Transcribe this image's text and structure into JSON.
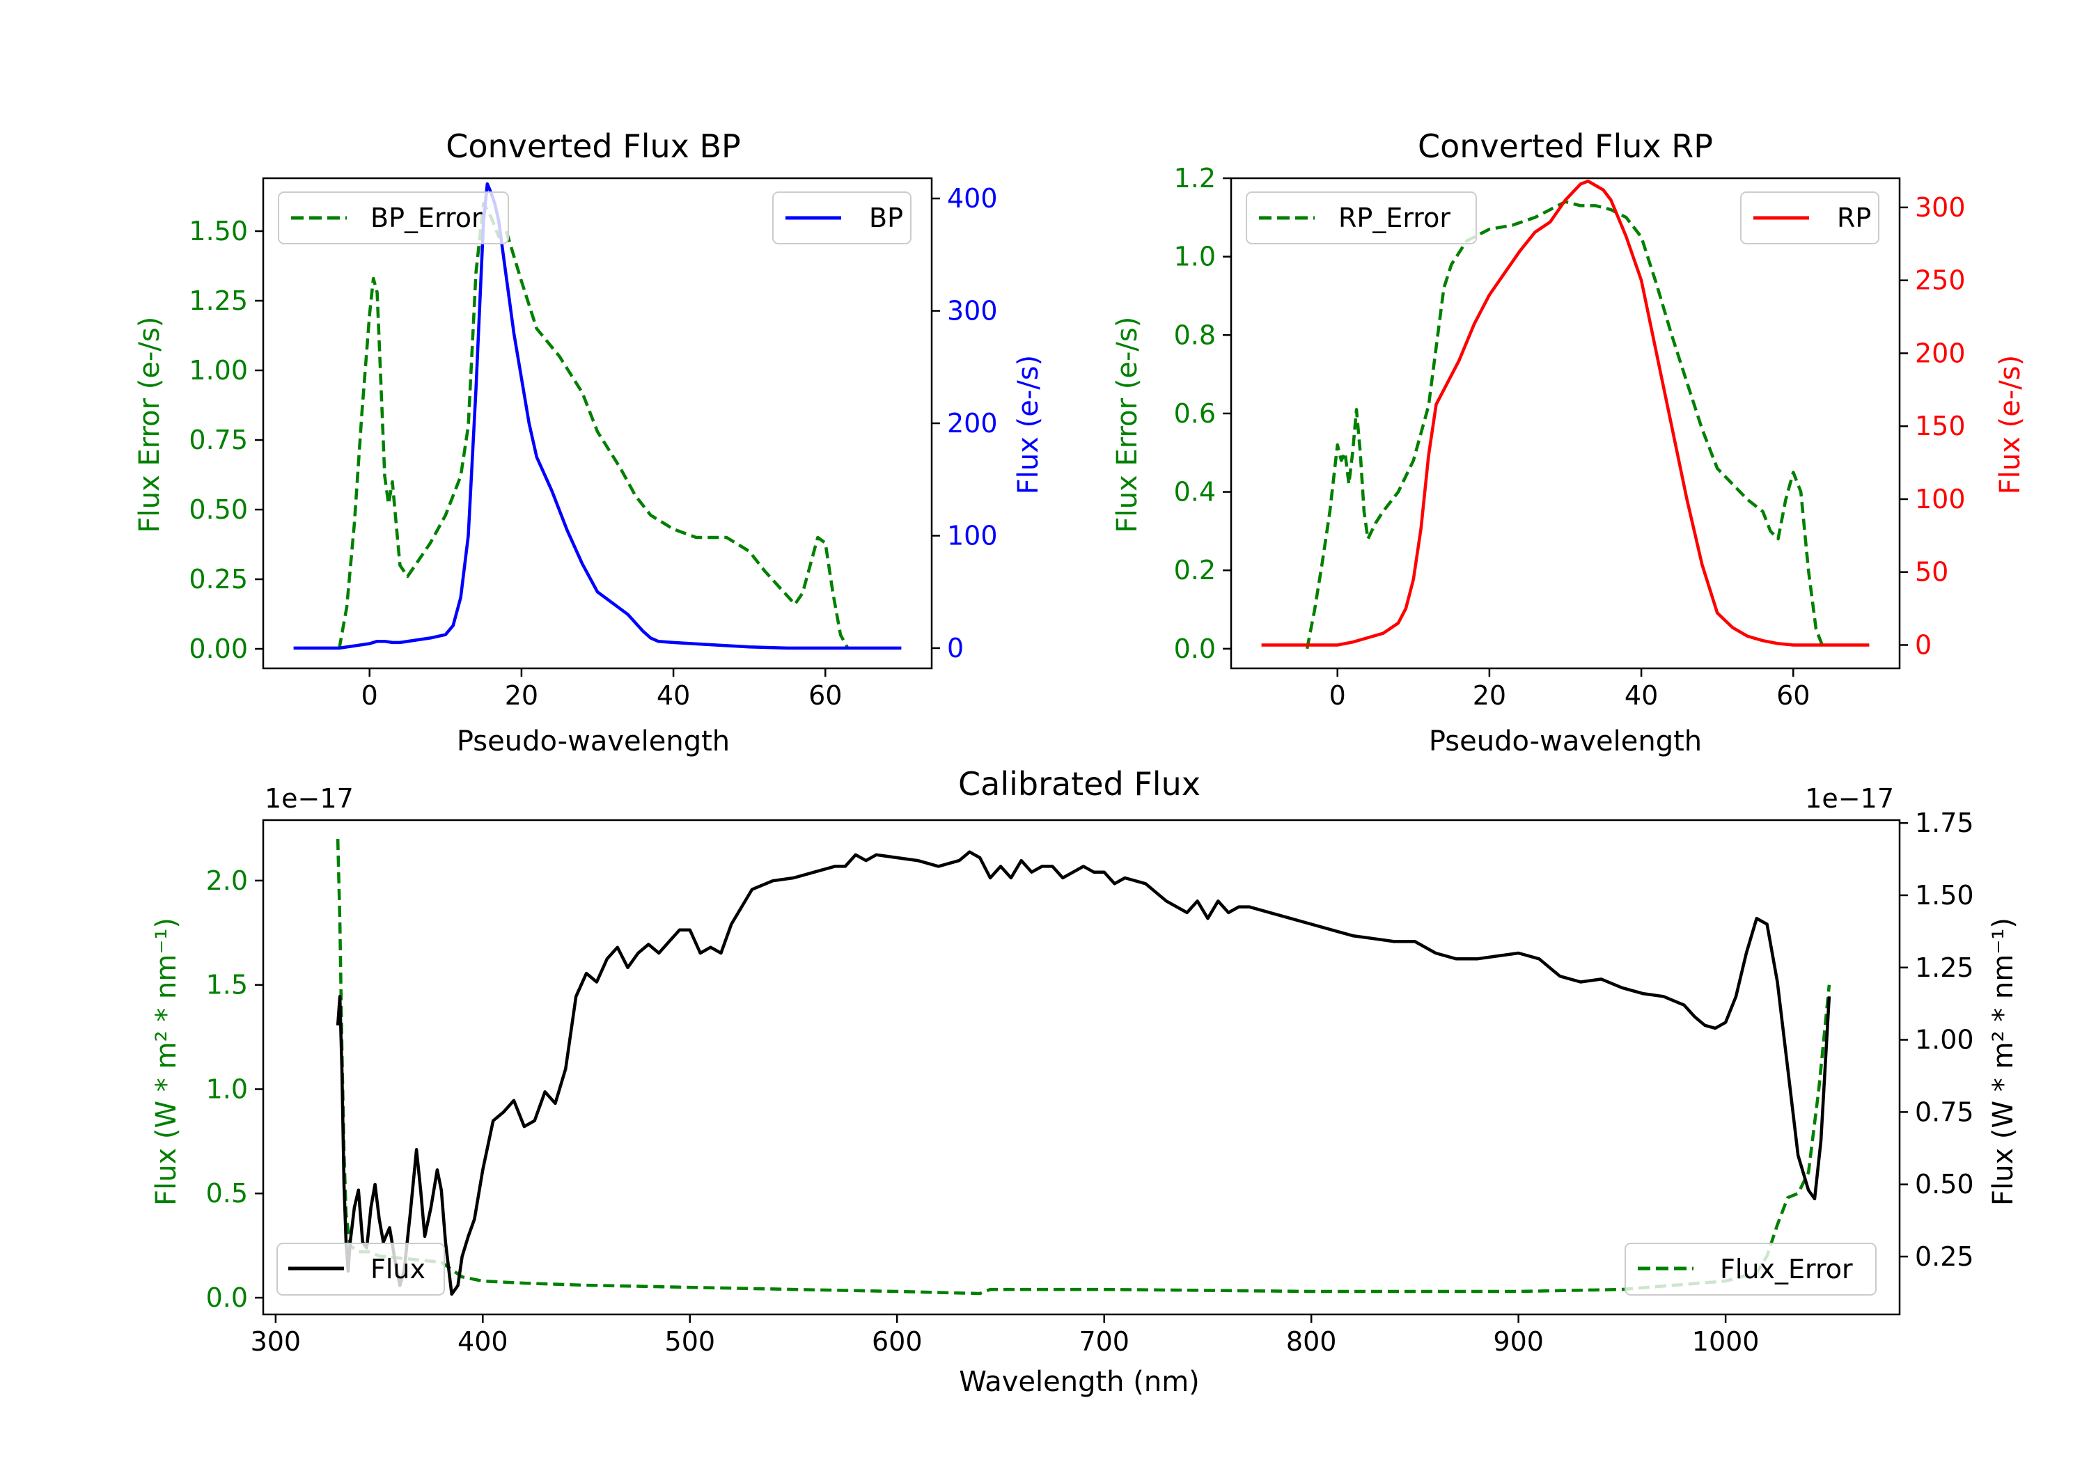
{
  "colors": {
    "bp": "#0000ff",
    "rp": "#ff0000",
    "error": "#008000",
    "flux": "#000000",
    "axis": "#000000"
  },
  "chart_data": [
    {
      "id": "bp",
      "type": "line",
      "title": "Converted Flux BP",
      "xlabel": "Pseudo-wavelength",
      "ylabel_left": "Flux Error (e-/s)",
      "ylabel_right": "Flux (e-/s)",
      "xlim": [
        -14,
        74
      ],
      "ylim_left": [
        -0.07,
        1.69
      ],
      "ylim_right": [
        -18,
        418
      ],
      "xticks": [
        0,
        20,
        40,
        60
      ],
      "xtick_labels": [
        "0",
        "20",
        "40",
        "60"
      ],
      "yticks_left": [
        0,
        0.25,
        0.5,
        0.75,
        1.0,
        1.25,
        1.5
      ],
      "ytick_labels_left": [
        "0.00",
        "0.25",
        "0.50",
        "0.75",
        "1.00",
        "1.25",
        "1.50"
      ],
      "yticks_right": [
        0,
        100,
        200,
        300,
        400
      ],
      "ytick_labels_right": [
        "0",
        "100",
        "200",
        "300",
        "400"
      ],
      "legend_left": "BP_Error",
      "legend_right": "BP",
      "error_series": {
        "name": "BP_Error",
        "style": "dashed",
        "axis": "left",
        "x": [
          -4,
          -3,
          -2,
          -1,
          0,
          0.5,
          1,
          1.5,
          2,
          2.5,
          3,
          3.5,
          4,
          5,
          6,
          8,
          10,
          12,
          13,
          14,
          15,
          16,
          17,
          18,
          20,
          22,
          25,
          28,
          30,
          33,
          35,
          37,
          40,
          43,
          47,
          50,
          52,
          54,
          55,
          56,
          57,
          58,
          59,
          60,
          61,
          62,
          63
        ],
        "y": [
          0.0,
          0.15,
          0.45,
          0.85,
          1.2,
          1.33,
          1.28,
          0.95,
          0.62,
          0.52,
          0.6,
          0.45,
          0.3,
          0.26,
          0.3,
          0.38,
          0.48,
          0.62,
          0.8,
          1.35,
          1.6,
          1.55,
          1.48,
          1.5,
          1.32,
          1.15,
          1.05,
          0.92,
          0.78,
          0.65,
          0.55,
          0.48,
          0.43,
          0.4,
          0.4,
          0.35,
          0.28,
          0.22,
          0.19,
          0.16,
          0.2,
          0.3,
          0.4,
          0.38,
          0.2,
          0.05,
          0.0
        ]
      },
      "flux_series": {
        "name": "BP",
        "style": "solid",
        "axis": "right",
        "x": [
          -10,
          -6,
          -4,
          -2,
          0,
          1,
          2,
          3,
          4,
          6,
          8,
          10,
          11,
          12,
          13,
          14,
          15,
          15.5,
          16,
          16.5,
          17,
          18,
          19,
          20,
          21,
          22,
          24,
          26,
          28,
          30,
          32,
          34,
          36,
          37,
          38,
          40,
          45,
          50,
          55,
          60,
          65,
          70
        ],
        "y": [
          0,
          0,
          0,
          2,
          4,
          6,
          6,
          5,
          5,
          7,
          9,
          12,
          20,
          45,
          100,
          230,
          380,
          413,
          405,
          395,
          380,
          330,
          280,
          240,
          200,
          170,
          140,
          105,
          75,
          50,
          40,
          30,
          15,
          9,
          6,
          5,
          3,
          1,
          0,
          0,
          0,
          0
        ]
      }
    },
    {
      "id": "rp",
      "type": "line",
      "title": "Converted Flux RP",
      "xlabel": "Pseudo-wavelength",
      "ylabel_left": "Flux Error (e-/s)",
      "ylabel_right": "Flux (e-/s)",
      "xlim": [
        -14,
        74
      ],
      "ylim_left": [
        -0.05,
        1.2
      ],
      "ylim_right": [
        -16,
        320
      ],
      "xticks": [
        0,
        20,
        40,
        60
      ],
      "xtick_labels": [
        "0",
        "20",
        "40",
        "60"
      ],
      "yticks_left": [
        0,
        0.2,
        0.4,
        0.6,
        0.8,
        1.0,
        1.2
      ],
      "ytick_labels_left": [
        "0.0",
        "0.2",
        "0.4",
        "0.6",
        "0.8",
        "1.0",
        "1.2"
      ],
      "yticks_right": [
        0,
        50,
        100,
        150,
        200,
        250,
        300
      ],
      "ytick_labels_right": [
        "0",
        "50",
        "100",
        "150",
        "200",
        "250",
        "300"
      ],
      "legend_left": "RP_Error",
      "legend_right": "RP",
      "error_series": {
        "name": "RP_Error",
        "style": "dashed",
        "axis": "left",
        "x": [
          -4,
          -3,
          -2,
          -1,
          0,
          0.5,
          1,
          1.5,
          2,
          2.5,
          3,
          3.5,
          4,
          5,
          6,
          8,
          10,
          12,
          14,
          15,
          17,
          20,
          23,
          26,
          28,
          30,
          32,
          34,
          36,
          38,
          40,
          42,
          44,
          46,
          48,
          50,
          52,
          54,
          56,
          57,
          58,
          59,
          60,
          61,
          62,
          63,
          64
        ],
        "y": [
          0.0,
          0.1,
          0.22,
          0.35,
          0.52,
          0.48,
          0.5,
          0.42,
          0.5,
          0.61,
          0.5,
          0.35,
          0.28,
          0.32,
          0.35,
          0.4,
          0.48,
          0.62,
          0.92,
          0.98,
          1.04,
          1.07,
          1.08,
          1.1,
          1.12,
          1.14,
          1.13,
          1.13,
          1.12,
          1.1,
          1.05,
          0.93,
          0.8,
          0.68,
          0.56,
          0.46,
          0.42,
          0.38,
          0.35,
          0.3,
          0.28,
          0.38,
          0.45,
          0.4,
          0.2,
          0.05,
          0.0
        ]
      },
      "flux_series": {
        "name": "RP",
        "style": "solid",
        "axis": "right",
        "x": [
          -10,
          -6,
          -4,
          -2,
          0,
          2,
          4,
          6,
          8,
          9,
          10,
          11,
          12,
          13,
          14,
          16,
          18,
          20,
          22,
          24,
          26,
          28,
          30,
          32,
          33,
          34,
          35,
          36,
          38,
          40,
          42,
          44,
          46,
          48,
          50,
          52,
          54,
          56,
          58,
          60,
          62,
          65,
          70
        ],
        "y": [
          0,
          0,
          0,
          0,
          0,
          2,
          5,
          8,
          15,
          25,
          45,
          80,
          130,
          165,
          175,
          195,
          220,
          240,
          255,
          270,
          283,
          290,
          305,
          316,
          318,
          315,
          312,
          305,
          280,
          250,
          200,
          150,
          100,
          55,
          22,
          12,
          6,
          3,
          1,
          0,
          0,
          0,
          0
        ]
      }
    },
    {
      "id": "calibrated",
      "type": "line",
      "title": "Calibrated Flux",
      "xlabel": "Wavelength (nm)",
      "ylabel_left": "Flux (W * m² * nm⁻¹)",
      "ylabel_right": "Flux (W * m² * nm⁻¹)",
      "offset_left": "1e−17",
      "offset_right": "1e−17",
      "xlim": [
        294,
        1084
      ],
      "ylim_left": [
        -0.08,
        2.29
      ],
      "ylim_right": [
        0.05,
        1.76
      ],
      "xticks": [
        300,
        400,
        500,
        600,
        700,
        800,
        900,
        1000
      ],
      "xtick_labels": [
        "300",
        "400",
        "500",
        "600",
        "700",
        "800",
        "900",
        "1000"
      ],
      "yticks_left": [
        0.0,
        0.5,
        1.0,
        1.5,
        2.0
      ],
      "ytick_labels_left": [
        "0.0",
        "0.5",
        "1.0",
        "1.5",
        "2.0"
      ],
      "yticks_right": [
        0.25,
        0.5,
        0.75,
        1.0,
        1.25,
        1.5,
        1.75
      ],
      "ytick_labels_right": [
        "0.25",
        "0.50",
        "0.75",
        "1.00",
        "1.25",
        "1.50",
        "1.75"
      ],
      "legend_left": "Flux",
      "legend_right": "Flux_Error",
      "error_series": {
        "name": "Flux_Error",
        "style": "dashed",
        "axis": "left",
        "x": [
          330,
          331,
          332,
          333,
          334,
          336,
          340,
          345,
          350,
          360,
          370,
          380,
          390,
          400,
          420,
          450,
          500,
          550,
          600,
          640,
          645,
          700,
          800,
          900,
          950,
          1000,
          1015,
          1020,
          1025,
          1030,
          1035,
          1040,
          1045,
          1050
        ],
        "y": [
          2.2,
          1.8,
          1.2,
          0.7,
          0.4,
          0.25,
          0.22,
          0.22,
          0.2,
          0.19,
          0.18,
          0.17,
          0.1,
          0.08,
          0.07,
          0.06,
          0.05,
          0.04,
          0.03,
          0.02,
          0.04,
          0.04,
          0.03,
          0.03,
          0.04,
          0.08,
          0.12,
          0.2,
          0.35,
          0.48,
          0.5,
          0.6,
          1.0,
          1.5
        ]
      },
      "flux_series": {
        "name": "Flux",
        "style": "solid",
        "axis": "right",
        "x": [
          330,
          331,
          332,
          333,
          334,
          335,
          336,
          338,
          340,
          342,
          344,
          346,
          348,
          350,
          352,
          355,
          358,
          360,
          362,
          365,
          368,
          370,
          372,
          375,
          378,
          380,
          382,
          385,
          388,
          390,
          393,
          396,
          400,
          405,
          410,
          415,
          420,
          425,
          430,
          435,
          440,
          445,
          450,
          455,
          460,
          465,
          470,
          475,
          480,
          485,
          490,
          495,
          500,
          505,
          510,
          515,
          520,
          530,
          540,
          550,
          560,
          570,
          575,
          580,
          585,
          590,
          600,
          610,
          620,
          630,
          635,
          640,
          645,
          650,
          655,
          660,
          665,
          670,
          675,
          680,
          685,
          690,
          695,
          700,
          705,
          710,
          720,
          730,
          740,
          745,
          750,
          755,
          760,
          765,
          770,
          780,
          790,
          800,
          810,
          820,
          830,
          840,
          850,
          860,
          870,
          880,
          890,
          900,
          910,
          920,
          930,
          940,
          950,
          960,
          970,
          980,
          985,
          990,
          995,
          1000,
          1005,
          1010,
          1015,
          1020,
          1025,
          1030,
          1035,
          1040,
          1043,
          1046,
          1050
        ],
        "y": [
          1.05,
          1.15,
          0.9,
          0.5,
          0.3,
          0.2,
          0.3,
          0.42,
          0.48,
          0.3,
          0.28,
          0.42,
          0.5,
          0.38,
          0.3,
          0.35,
          0.22,
          0.15,
          0.2,
          0.4,
          0.62,
          0.48,
          0.32,
          0.42,
          0.55,
          0.48,
          0.3,
          0.12,
          0.15,
          0.25,
          0.32,
          0.38,
          0.55,
          0.72,
          0.75,
          0.79,
          0.7,
          0.72,
          0.82,
          0.78,
          0.9,
          1.15,
          1.23,
          1.2,
          1.28,
          1.32,
          1.25,
          1.3,
          1.33,
          1.3,
          1.34,
          1.38,
          1.38,
          1.3,
          1.32,
          1.3,
          1.4,
          1.52,
          1.55,
          1.56,
          1.58,
          1.6,
          1.6,
          1.64,
          1.62,
          1.64,
          1.63,
          1.62,
          1.6,
          1.62,
          1.65,
          1.63,
          1.56,
          1.6,
          1.56,
          1.62,
          1.58,
          1.6,
          1.6,
          1.56,
          1.58,
          1.6,
          1.58,
          1.58,
          1.54,
          1.56,
          1.54,
          1.48,
          1.44,
          1.48,
          1.42,
          1.48,
          1.44,
          1.46,
          1.46,
          1.44,
          1.42,
          1.4,
          1.38,
          1.36,
          1.35,
          1.34,
          1.34,
          1.3,
          1.28,
          1.28,
          1.29,
          1.3,
          1.28,
          1.22,
          1.2,
          1.21,
          1.18,
          1.16,
          1.15,
          1.12,
          1.08,
          1.05,
          1.04,
          1.06,
          1.15,
          1.3,
          1.42,
          1.4,
          1.2,
          0.9,
          0.6,
          0.48,
          0.45,
          0.65,
          1.15
        ]
      }
    }
  ]
}
